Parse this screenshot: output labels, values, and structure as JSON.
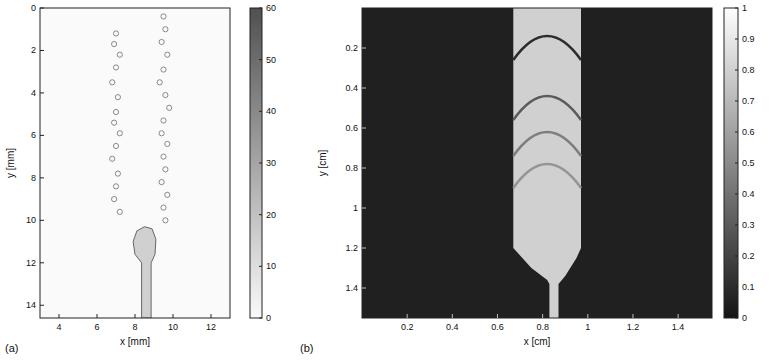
{
  "chart_data": [
    {
      "type": "image",
      "panel": "(a)",
      "xlabel": "x [mm]",
      "ylabel": "y [mm]",
      "xlim": [
        3,
        13
      ],
      "ylim": [
        14.6,
        0
      ],
      "xticks": [
        4,
        6,
        8,
        10,
        12
      ],
      "yticks": [
        0,
        2,
        4,
        6,
        8,
        10,
        12,
        14
      ],
      "field": {
        "background": 0,
        "jet": 15,
        "bubble": 40
      },
      "bubbles": {
        "x": [
          7.0,
          6.9,
          7.2,
          7.0,
          6.8,
          7.1,
          7.0,
          6.9,
          7.2,
          7.0,
          6.8,
          7.1,
          7.0,
          6.9,
          7.2,
          9.5,
          9.6,
          9.4,
          9.7,
          9.5,
          9.3,
          9.6,
          9.8,
          9.5,
          9.4,
          9.7,
          9.5,
          9.6,
          9.4,
          9.7,
          9.5,
          9.6
        ],
        "y": [
          1.2,
          1.7,
          2.2,
          2.8,
          3.5,
          4.2,
          4.9,
          5.4,
          5.9,
          6.5,
          7.1,
          7.8,
          8.4,
          9.0,
          9.6,
          0.4,
          1.0,
          1.6,
          2.2,
          2.9,
          3.5,
          4.1,
          4.7,
          5.3,
          5.9,
          6.4,
          7.0,
          7.6,
          8.2,
          8.8,
          9.4,
          10.0
        ]
      },
      "jet": {
        "x": [
          8.35,
          8.35,
          8.0,
          7.9,
          8.1,
          8.5,
          8.9,
          9.1,
          9.05,
          8.85,
          8.85
        ],
        "y": [
          14.6,
          12.0,
          11.6,
          11.0,
          10.5,
          10.3,
          10.4,
          10.9,
          11.6,
          12.0,
          14.6
        ]
      },
      "colorbar": {
        "range": [
          0,
          60
        ],
        "ticks": [
          0,
          10,
          20,
          30,
          40,
          50,
          60
        ]
      }
    },
    {
      "type": "image",
      "panel": "(b)",
      "xlabel": "x [cm]",
      "ylabel": "y [cm]",
      "xlim": [
        0,
        1.55
      ],
      "ylim": [
        1.55,
        0
      ],
      "xticks": [
        0.2,
        0.4,
        0.6,
        0.8,
        1,
        1.2,
        1.4
      ],
      "yticks": [
        0.2,
        0.4,
        0.6,
        0.8,
        1,
        1.2,
        1.4
      ],
      "field": {
        "background": 0.05,
        "jet": 0.8
      },
      "jet": {
        "x": [
          0.67,
          0.67,
          0.75,
          0.82,
          0.83,
          0.83,
          0.87,
          0.87,
          0.9,
          0.95,
          0.97,
          0.97
        ],
        "y": [
          0,
          1.2,
          1.3,
          1.36,
          1.38,
          1.55,
          1.55,
          1.38,
          1.34,
          1.25,
          1.2,
          0
        ]
      },
      "fronts": {
        "y": [
          0.14,
          0.44,
          0.62,
          0.78
        ],
        "values": [
          0.1,
          0.3,
          0.45,
          0.55
        ]
      },
      "colorbar": {
        "range": [
          0,
          1
        ],
        "ticks": [
          0,
          0.1,
          0.2,
          0.3,
          0.4,
          0.5,
          0.6,
          0.7,
          0.8,
          0.9,
          1
        ]
      }
    }
  ]
}
